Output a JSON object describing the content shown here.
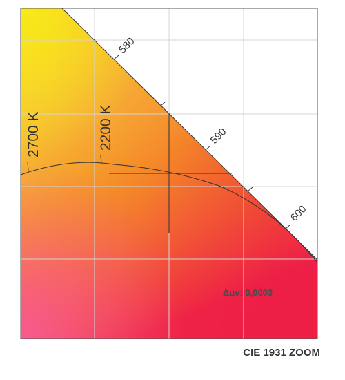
{
  "chart_data": {
    "type": "chromaticity-diagram",
    "title": "CIE 1931 ZOOM",
    "spectral_locus": {
      "wavelength_labels": [
        "580",
        "590",
        "600"
      ]
    },
    "isotemperature_lines": [
      {
        "label": "2700 K"
      },
      {
        "label": "2200 K"
      }
    ],
    "planckian_locus": true,
    "crosshair": true,
    "annotation": "Δuv: 0,0003",
    "grid": true,
    "gradient_colors": {
      "top_left": "#f7e41b",
      "mid": "#f59a1f",
      "bottom_left": "#f7578b",
      "bottom_right": "#e9103d"
    }
  }
}
